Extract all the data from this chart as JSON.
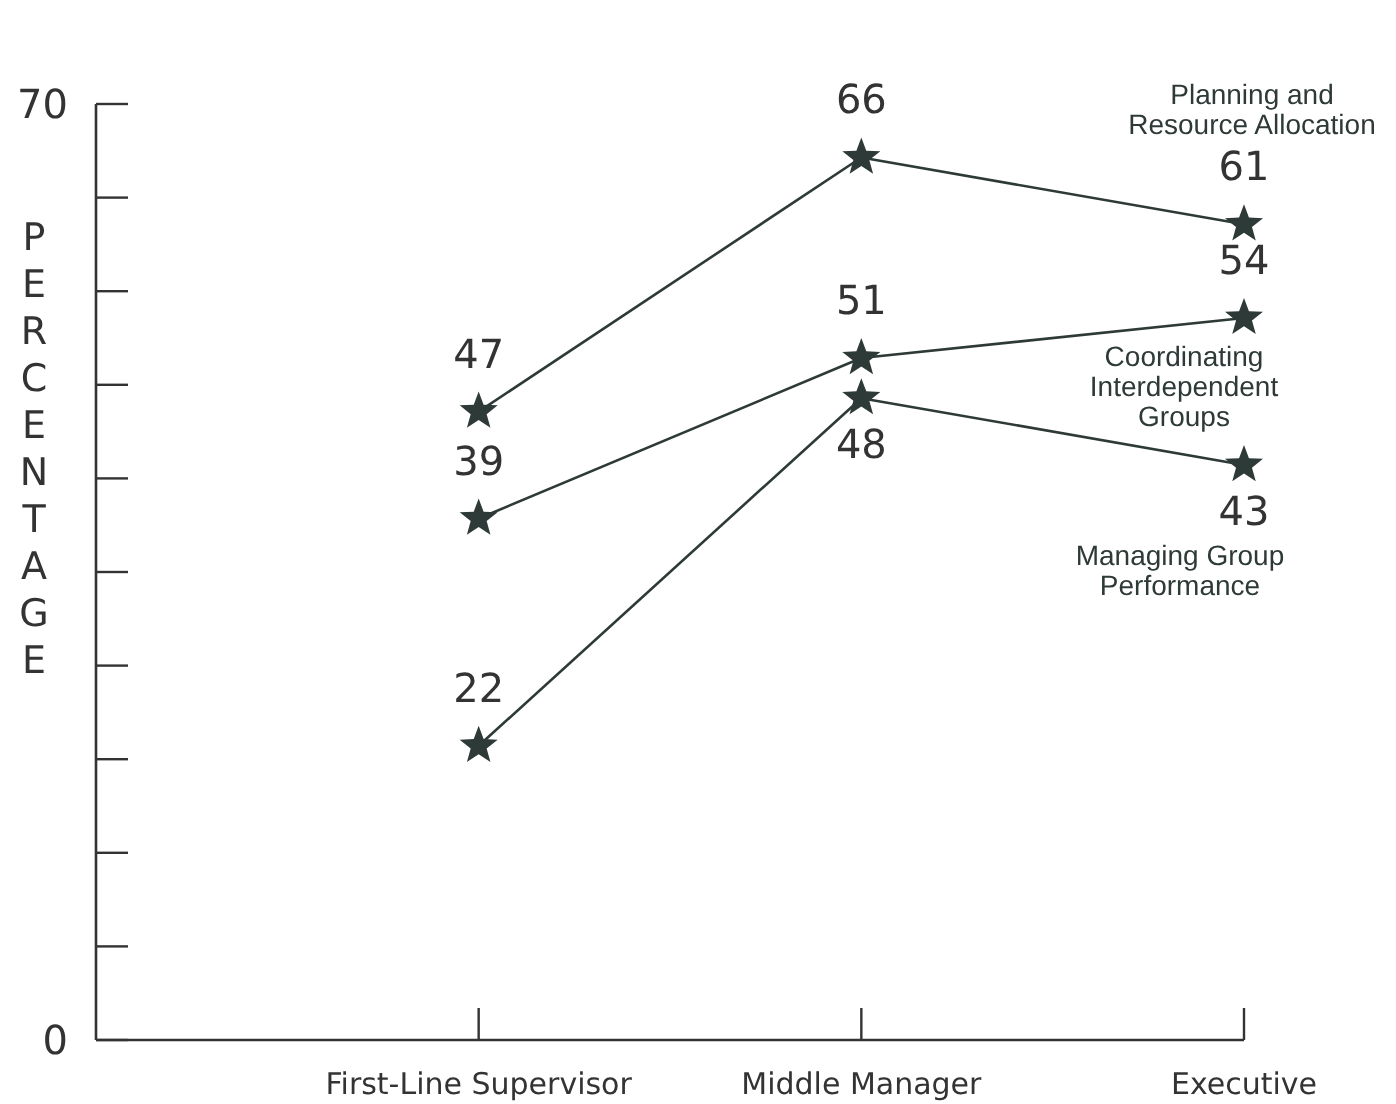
{
  "chart_data": {
    "type": "line",
    "ylabel": "PERCENTAGE",
    "categories": [
      null,
      "First-Line Supervisor",
      "Middle Manager",
      "Executive"
    ],
    "series": [
      {
        "name": "Planning and Resource Allocation",
        "color": "#2e3a38",
        "values": [
          null,
          47,
          66,
          61
        ]
      },
      {
        "name": "Coordinating Interdependent Groups",
        "color": "#2e3a38",
        "values": [
          null,
          39,
          51,
          54
        ]
      },
      {
        "name": "Managing Group Performance",
        "color": "#2e3a38",
        "values": [
          null,
          22,
          48,
          43
        ]
      }
    ],
    "ylim": [
      0,
      70
    ],
    "yticks": [
      0,
      {
        "value": 7,
        "label": null
      },
      {
        "value": 14,
        "label": null
      },
      {
        "value": 21,
        "label": null
      },
      {
        "value": 28,
        "label": null
      },
      {
        "value": 35,
        "label": null
      },
      {
        "value": 42,
        "label": null
      },
      {
        "value": 49,
        "label": null
      },
      {
        "value": 56,
        "label": null
      },
      {
        "value": 63,
        "label": null
      },
      70
    ],
    "marker": "star",
    "data_labels": true,
    "grid": false,
    "legend": false
  }
}
